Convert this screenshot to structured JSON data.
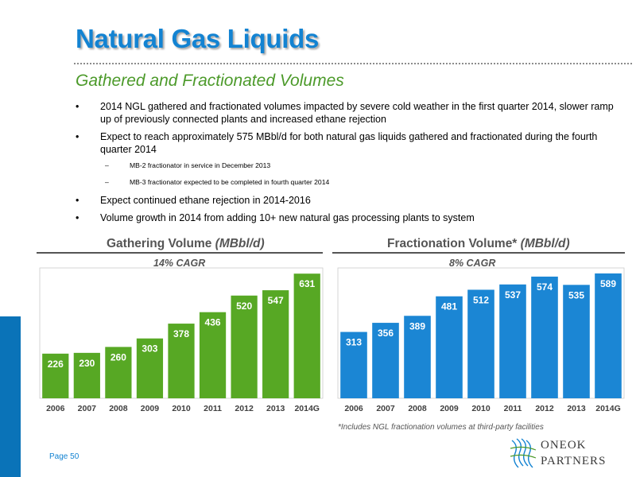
{
  "header": {
    "title": "Natural Gas Liquids",
    "subtitle": "Gathered and Fractionated Volumes"
  },
  "bullets": [
    {
      "text": "2014 NGL gathered and fractionated volumes impacted by severe cold weather in the first quarter 2014, slower ramp up of previously connected plants and increased ethane rejection"
    },
    {
      "text": "Expect to reach approximately 575 MBbl/d for both natural gas liquids gathered and fractionated during the fourth quarter 2014"
    },
    {
      "text": "Expect continued ethane rejection in 2014-2016"
    },
    {
      "text": "Volume growth in 2014 from adding 10+ new natural gas processing plants to system"
    }
  ],
  "sub_bullets": [
    "MB-2 fractionator in service in December 2013",
    "MB-3 fractionator expected to be completed in fourth quarter 2014"
  ],
  "markers": {
    "bullet": "•",
    "dash": "–"
  },
  "chart_data": [
    {
      "type": "bar",
      "title": "Gathering Volume",
      "title_unit": "(MBbl/d)",
      "subtitle": "14% CAGR",
      "categories": [
        "2006",
        "2007",
        "2008",
        "2009",
        "2010",
        "2011",
        "2012",
        "2013",
        "2014G"
      ],
      "values": [
        226,
        230,
        260,
        303,
        378,
        436,
        520,
        547,
        631
      ],
      "ylim": [
        0,
        660
      ],
      "color": "#57a824",
      "grid": false
    },
    {
      "type": "bar",
      "title": "Fractionation Volume*",
      "title_unit": "(MBbl/d)",
      "subtitle": "8% CAGR",
      "categories": [
        "2006",
        "2007",
        "2008",
        "2009",
        "2010",
        "2011",
        "2012",
        "2013",
        "2014G"
      ],
      "values": [
        313,
        356,
        389,
        481,
        512,
        537,
        574,
        535,
        589
      ],
      "ylim": [
        0,
        615
      ],
      "color": "#1b86d4",
      "grid": false
    }
  ],
  "footnote": "*Includes NGL fractionation volumes at third-party facilities",
  "page_label": "Page 50",
  "logo": {
    "line1": "ONEOK",
    "line2": "PARTNERS"
  },
  "colors": {
    "title": "#1383d2",
    "subtitle": "#4c9a2a",
    "gathering": "#57a824",
    "fractionation": "#1b86d4",
    "left_bar": "#0a73b8"
  }
}
